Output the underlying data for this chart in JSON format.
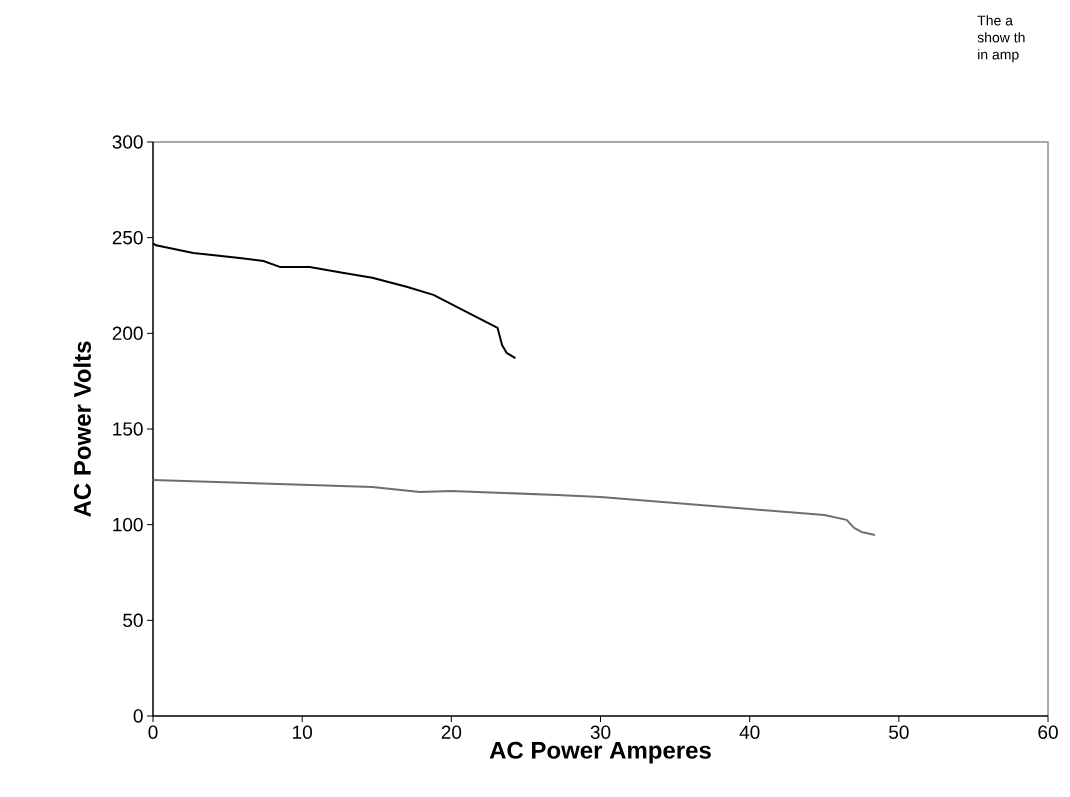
{
  "chart_data": {
    "type": "line",
    "xlabel": "AC Power Amperes",
    "ylabel": "AC Power Volts",
    "annotations": [
      "The  a",
      "show th",
      "in amp"
    ],
    "xlim": [
      0,
      60
    ],
    "xticks": [
      0,
      10,
      20,
      30,
      40,
      50,
      60
    ],
    "ylim": [
      0,
      300
    ],
    "yticks": [
      0,
      50,
      100,
      150,
      200,
      250,
      300
    ],
    "grid": false,
    "legend": false,
    "marker": "none",
    "line_style": "solid",
    "series": [
      {
        "color": "#000000",
        "x": [
          0,
          0.2,
          2.7,
          5.8,
          7.4,
          8.5,
          10.5,
          12.7,
          14.7,
          17.0,
          18.8,
          21.4,
          23.1,
          23.4,
          23.7,
          24.3
        ],
        "values": [
          247,
          246,
          242,
          239.4,
          237.8,
          234.7,
          234.7,
          231.6,
          229,
          224.3,
          220.1,
          209.6,
          202.8,
          193.9,
          189.8,
          187
        ]
      },
      {
        "color": "#6e6e6e",
        "x": [
          0,
          10,
          14.7,
          17.9,
          20,
          27.1,
          30,
          40,
          45,
          46.5,
          47,
          47.5,
          48.4
        ],
        "values": [
          123.4,
          120.8,
          119.7,
          117.1,
          117.6,
          115.5,
          114.5,
          108.2,
          105,
          102.5,
          98.3,
          96.2,
          94.6
        ]
      }
    ]
  }
}
